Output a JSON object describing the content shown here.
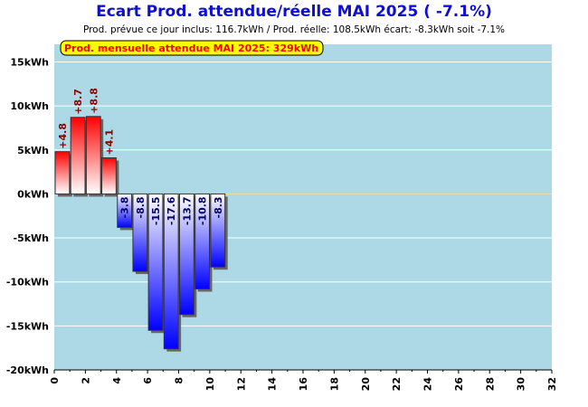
{
  "chart_data": {
    "type": "bar",
    "title": "Ecart Prod. attendue/réelle MAI 2025 ( -7.1%)",
    "subtitle": "Prod. prévue ce jour inclus: 116.7kWh / Prod. réelle: 108.5kWh écart: -8.3kWh soit -7.1%",
    "annotation": "Prod. mensuelle attendue MAI 2025: 329kWh",
    "xlim": [
      0,
      32
    ],
    "ylim": [
      -20,
      17
    ],
    "x_ticks": [
      0,
      2,
      4,
      6,
      8,
      10,
      12,
      14,
      16,
      18,
      20,
      22,
      24,
      26,
      28,
      30,
      32
    ],
    "y_ticks": [
      {
        "value": 15,
        "label": "15kWh"
      },
      {
        "value": 10,
        "label": "10kWh"
      },
      {
        "value": 5,
        "label": "5kWh"
      },
      {
        "value": 0,
        "label": "0kWh"
      },
      {
        "value": -5,
        "label": "-5kWh"
      },
      {
        "value": -10,
        "label": "-10kWh"
      },
      {
        "value": -15,
        "label": "-15kWh"
      },
      {
        "value": -20,
        "label": "-20kWh"
      }
    ],
    "bars": [
      {
        "day": 1,
        "value": 4.8,
        "label": "+4.8"
      },
      {
        "day": 2,
        "value": 8.7,
        "label": "+8.7"
      },
      {
        "day": 3,
        "value": 8.8,
        "label": "+8.8"
      },
      {
        "day": 4,
        "value": 4.1,
        "label": "+4.1"
      },
      {
        "day": 5,
        "value": -3.8,
        "label": "-3.8"
      },
      {
        "day": 6,
        "value": -8.8,
        "label": "-8.8"
      },
      {
        "day": 7,
        "value": -15.5,
        "label": "-15.5"
      },
      {
        "day": 8,
        "value": -17.6,
        "label": "-17.6"
      },
      {
        "day": 9,
        "value": -13.7,
        "label": "-13.7"
      },
      {
        "day": 10,
        "value": -10.8,
        "label": "-10.8"
      },
      {
        "day": 11,
        "value": -8.3,
        "label": "-8.3"
      }
    ],
    "grid": true,
    "colors": {
      "plot_background": "#add8e6",
      "grid": "#ffffff",
      "zero_line": "#e6e68c",
      "positive_bar": "#ff0000",
      "negative_bar": "#0000ff",
      "positive_label": "#880000",
      "negative_label": "#000066",
      "title": "#1010cc",
      "annotation_text": "#ff0000",
      "annotation_background": "#ffff00"
    }
  }
}
